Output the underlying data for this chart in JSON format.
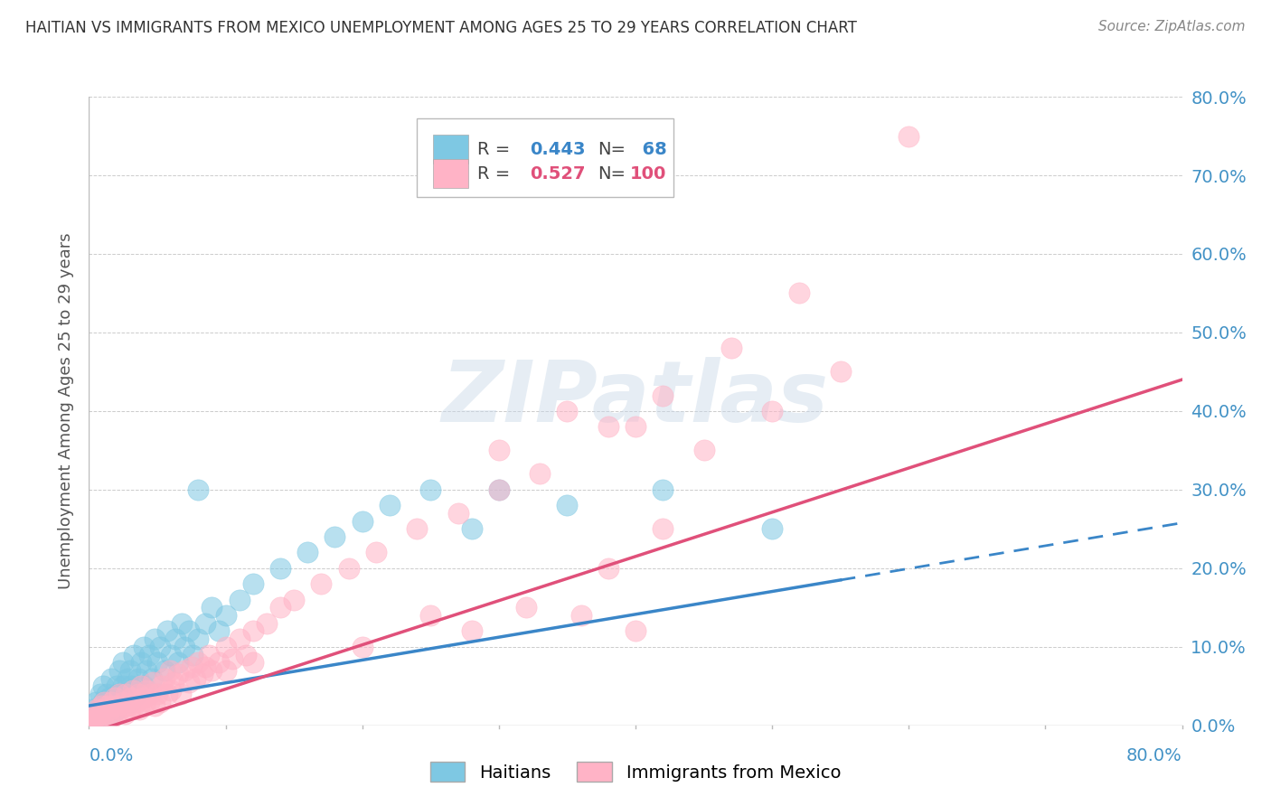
{
  "title": "HAITIAN VS IMMIGRANTS FROM MEXICO UNEMPLOYMENT AMONG AGES 25 TO 29 YEARS CORRELATION CHART",
  "source": "Source: ZipAtlas.com",
  "ylabel": "Unemployment Among Ages 25 to 29 years",
  "r_haitian": 0.443,
  "n_haitian": 68,
  "r_mexico": 0.527,
  "n_mexico": 100,
  "haitian_color": "#7ec8e3",
  "mexico_color": "#ffb3c6",
  "haitian_line_color": "#3a86c8",
  "mexico_line_color": "#e0507a",
  "background_color": "#ffffff",
  "grid_color": "#cccccc",
  "title_color": "#333333",
  "axis_label_color": "#4292c6",
  "watermark": "ZIPatlas",
  "xlim": [
    0.0,
    0.8
  ],
  "ylim": [
    0.0,
    0.8
  ],
  "haitian_x": [
    0.0,
    0.002,
    0.004,
    0.005,
    0.006,
    0.007,
    0.008,
    0.009,
    0.01,
    0.01,
    0.012,
    0.013,
    0.015,
    0.015,
    0.016,
    0.018,
    0.02,
    0.02,
    0.021,
    0.022,
    0.023,
    0.025,
    0.025,
    0.026,
    0.028,
    0.03,
    0.03,
    0.031,
    0.033,
    0.035,
    0.036,
    0.038,
    0.04,
    0.04,
    0.042,
    0.044,
    0.046,
    0.048,
    0.05,
    0.052,
    0.055,
    0.057,
    0.06,
    0.063,
    0.065,
    0.068,
    0.07,
    0.073,
    0.076,
    0.08,
    0.085,
    0.09,
    0.095,
    0.1,
    0.11,
    0.12,
    0.14,
    0.16,
    0.18,
    0.2,
    0.22,
    0.25,
    0.28,
    0.3,
    0.35,
    0.42,
    0.5,
    0.08
  ],
  "haitian_y": [
    0.01,
    0.02,
    0.01,
    0.03,
    0.01,
    0.02,
    0.04,
    0.01,
    0.03,
    0.05,
    0.02,
    0.04,
    0.01,
    0.035,
    0.06,
    0.03,
    0.02,
    0.05,
    0.04,
    0.07,
    0.03,
    0.05,
    0.08,
    0.04,
    0.06,
    0.03,
    0.07,
    0.05,
    0.09,
    0.04,
    0.06,
    0.08,
    0.05,
    0.1,
    0.07,
    0.09,
    0.06,
    0.11,
    0.08,
    0.1,
    0.07,
    0.12,
    0.09,
    0.11,
    0.08,
    0.13,
    0.1,
    0.12,
    0.09,
    0.11,
    0.13,
    0.15,
    0.12,
    0.14,
    0.16,
    0.18,
    0.2,
    0.22,
    0.24,
    0.26,
    0.28,
    0.3,
    0.25,
    0.3,
    0.28,
    0.3,
    0.25,
    0.3
  ],
  "mexico_x": [
    0.0,
    0.001,
    0.002,
    0.003,
    0.004,
    0.005,
    0.006,
    0.007,
    0.008,
    0.009,
    0.01,
    0.01,
    0.011,
    0.012,
    0.013,
    0.014,
    0.015,
    0.016,
    0.017,
    0.018,
    0.019,
    0.02,
    0.021,
    0.022,
    0.023,
    0.025,
    0.026,
    0.027,
    0.028,
    0.03,
    0.031,
    0.032,
    0.033,
    0.035,
    0.036,
    0.037,
    0.038,
    0.04,
    0.041,
    0.042,
    0.044,
    0.045,
    0.047,
    0.048,
    0.05,
    0.052,
    0.053,
    0.055,
    0.057,
    0.059,
    0.06,
    0.062,
    0.065,
    0.067,
    0.07,
    0.073,
    0.075,
    0.078,
    0.08,
    0.083,
    0.085,
    0.088,
    0.09,
    0.095,
    0.1,
    0.105,
    0.11,
    0.115,
    0.12,
    0.13,
    0.14,
    0.15,
    0.17,
    0.19,
    0.21,
    0.24,
    0.27,
    0.3,
    0.33,
    0.38,
    0.42,
    0.47,
    0.52,
    0.3,
    0.35,
    0.4,
    0.45,
    0.5,
    0.55,
    0.6,
    0.38,
    0.42,
    0.2,
    0.25,
    0.28,
    0.32,
    0.36,
    0.4,
    0.1,
    0.12
  ],
  "mexico_y": [
    0.005,
    0.01,
    0.005,
    0.015,
    0.008,
    0.01,
    0.02,
    0.005,
    0.015,
    0.025,
    0.01,
    0.02,
    0.03,
    0.015,
    0.025,
    0.008,
    0.02,
    0.03,
    0.01,
    0.025,
    0.035,
    0.015,
    0.025,
    0.04,
    0.02,
    0.03,
    0.015,
    0.04,
    0.025,
    0.02,
    0.035,
    0.045,
    0.025,
    0.03,
    0.04,
    0.02,
    0.05,
    0.035,
    0.025,
    0.045,
    0.03,
    0.04,
    0.055,
    0.025,
    0.04,
    0.03,
    0.05,
    0.06,
    0.04,
    0.07,
    0.045,
    0.055,
    0.065,
    0.04,
    0.07,
    0.055,
    0.075,
    0.06,
    0.08,
    0.065,
    0.075,
    0.09,
    0.07,
    0.08,
    0.1,
    0.085,
    0.11,
    0.09,
    0.12,
    0.13,
    0.15,
    0.16,
    0.18,
    0.2,
    0.22,
    0.25,
    0.27,
    0.3,
    0.32,
    0.38,
    0.42,
    0.48,
    0.55,
    0.35,
    0.4,
    0.38,
    0.35,
    0.4,
    0.45,
    0.75,
    0.2,
    0.25,
    0.1,
    0.14,
    0.12,
    0.15,
    0.14,
    0.12,
    0.07,
    0.08
  ],
  "haitian_trend": [
    0.025,
    0.185
  ],
  "mexico_trend": [
    -0.01,
    0.44
  ],
  "haitian_trend_x": [
    0.0,
    0.55
  ],
  "mexico_trend_x": [
    0.0,
    0.8
  ]
}
